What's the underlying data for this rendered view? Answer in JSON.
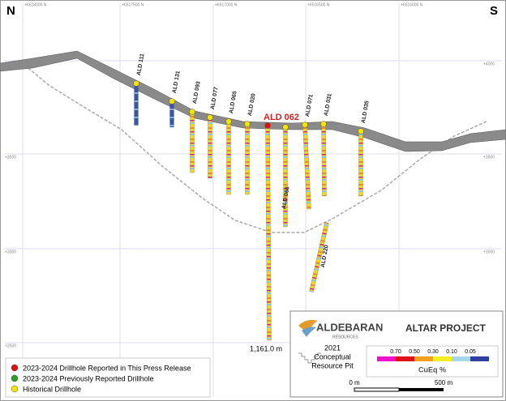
{
  "compass": {
    "north": "N",
    "south": "S"
  },
  "northings": [
    "+6518000 N",
    "+6517500 N",
    "+6517000 N",
    "+6516500 N",
    "+6516000 N"
  ],
  "elevations": [
    "+4000",
    "+3500",
    "+3000",
    "+2500"
  ],
  "drillholes": [
    {
      "label": "ALD 111"
    },
    {
      "label": "ALD 131"
    },
    {
      "label": "ALD 093"
    },
    {
      "label": "ALD 077"
    },
    {
      "label": "ALD 065"
    },
    {
      "label": "ALD 020"
    },
    {
      "label": "ALD 062"
    },
    {
      "label": "ALD 066"
    },
    {
      "label": "ALD 071"
    },
    {
      "label": "ALD 031"
    },
    {
      "label": "ALD 035"
    },
    {
      "label": "ALD 220"
    }
  ],
  "depth_label": "1,161.0 m",
  "legend": [
    "2023-2024 Drillhole Reported in This Press Release",
    "2023-2024 Previously Reported Drillhole",
    "Historical Drillhole"
  ],
  "logo": {
    "name": "ALDEBARAN",
    "sub": "RESOURCES"
  },
  "project": "ALTAR PROJECT",
  "pit_legend": [
    "2021",
    "Conceptual",
    "Resource Pit"
  ],
  "grade_scale": {
    "ticks": [
      "0.70",
      "0.50",
      "0.30",
      "0.10",
      "0.05"
    ],
    "title": "CuEq %"
  },
  "scale_bar": [
    "0 m",
    "500 m"
  ]
}
